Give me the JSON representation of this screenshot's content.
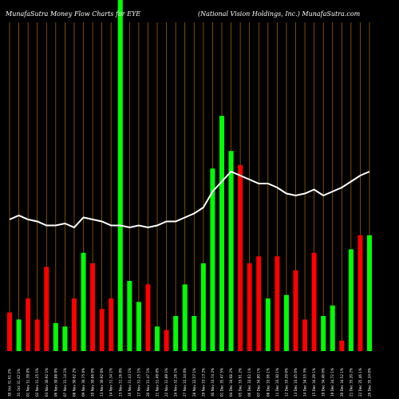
{
  "title_left": "MunafaSutra  Money Flow  Charts for EYE",
  "title_right": "(National Vision  Holdings, Inc.) MunafaSutra.com",
  "chart_data": {
    "type": "bar",
    "ylim": [
      0,
      100
    ],
    "grid": true,
    "categories": [
      "30 Oct 31.61 2%",
      "31 Oct 31.42 1%",
      "01 Nov 31.39 0%",
      "02 Nov 31.25 1%",
      "03 Nov 30.92 1%",
      "06 Nov 30.88 0%",
      "07 Nov 31.14 1%",
      "08 Nov 30.62 2%",
      "09 Nov 30.75 0%",
      "10 Nov 30.86 0%",
      "13 Nov 30.92 0%",
      "14 Nov 31.34 1%",
      "15 Nov 31.26 0%",
      "16 Nov 31.43 1%",
      "17 Nov 31.25 1%",
      "20 Nov 31.47 1%",
      "21 Nov 31.49 0%",
      "22 Nov 31.89 1%",
      "24 Nov 32.26 1%",
      "27 Nov 32.34 0%",
      "28 Nov 32.57 1%",
      "29 Nov 33.13 2%",
      "30 Nov 33.74 2%",
      "01 Dec 35.47 5%",
      "04 Dec 34.68 2%",
      "05 Dec 33.91 2%",
      "06 Dec 33.62 1%",
      "07 Dec 34.00 1%",
      "08 Dec 33.56 1%",
      "11 Dec 33.30 1%",
      "12 Dec 33.29 0%",
      "13 Dec 33.45 0%",
      "14 Dec 34.55 3%",
      "15 Dec 34.29 1%",
      "18 Dec 34.46 0%",
      "19 Dec 34.72 1%",
      "20 Dec 34.52 1%",
      "21 Dec 35.20 2%",
      "22 Dec 35.46 1%",
      "26 Dec 35.34 0%"
    ],
    "volume_colors": [
      "red",
      "green",
      "red",
      "red",
      "red",
      "green",
      "green",
      "red",
      "green",
      "red",
      "red",
      "red",
      "green",
      "green",
      "green",
      "red",
      "green",
      "red",
      "green",
      "green",
      "green",
      "green",
      "green",
      "green",
      "green",
      "red",
      "red",
      "red",
      "green",
      "red",
      "green",
      "red",
      "red",
      "red",
      "green",
      "green",
      "red",
      "green",
      "red",
      "green"
    ],
    "volume_values": [
      11,
      9,
      15,
      9,
      24,
      8,
      7,
      15,
      28,
      25,
      12,
      15,
      100,
      20,
      14,
      19,
      7,
      6,
      10,
      19,
      10,
      25,
      52,
      67,
      57,
      53,
      25,
      27,
      15,
      27,
      16,
      23,
      9,
      28,
      10,
      13,
      3,
      29,
      33,
      33
    ],
    "money_flow": [
      66,
      68,
      66,
      65,
      63,
      63,
      64,
      62,
      67,
      66,
      65,
      63,
      63,
      62,
      63,
      62,
      63,
      65,
      65,
      67,
      69,
      72,
      80,
      85,
      90,
      88,
      86,
      84,
      84,
      82,
      79,
      78,
      79,
      81,
      78,
      80,
      82,
      85,
      88,
      90
    ]
  }
}
